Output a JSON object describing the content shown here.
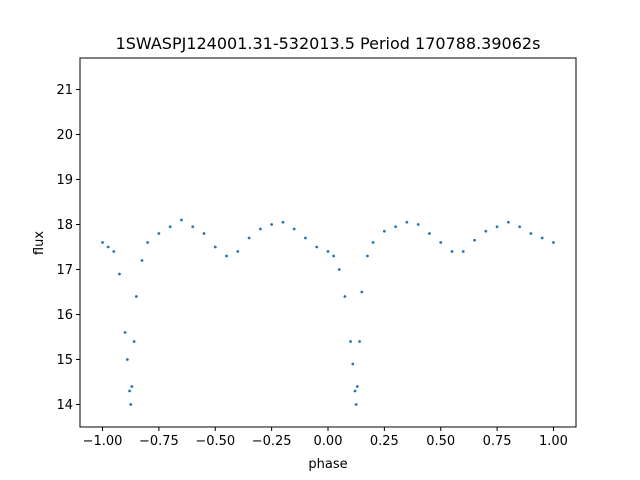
{
  "chart_data": {
    "type": "scatter",
    "title": "1SWASPJ124001.31-532013.5 Period 170788.39062s",
    "xlabel": "phase",
    "ylabel": "flux",
    "xlim": [
      -1.1,
      1.1
    ],
    "ylim": [
      13.5,
      21.7
    ],
    "xticks": [
      -1.0,
      -0.75,
      -0.5,
      -0.25,
      0.0,
      0.25,
      0.5,
      0.75,
      1.0
    ],
    "xtick_labels": [
      "−1.00",
      "−0.75",
      "−0.50",
      "−0.25",
      "0.00",
      "0.25",
      "0.50",
      "0.75",
      "1.00"
    ],
    "yticks": [
      14,
      15,
      16,
      17,
      18,
      19,
      20,
      21
    ],
    "ytick_labels": [
      "14",
      "15",
      "16",
      "17",
      "18",
      "19",
      "20",
      "21"
    ],
    "grid": false,
    "point_color": "#1f77b4",
    "series": [
      {
        "x": [
          -1.0,
          -0.975,
          -0.95,
          -0.925,
          -0.9,
          -0.89,
          -0.88,
          -0.875,
          -0.87,
          -0.86,
          -0.85,
          -0.825,
          -0.8,
          -0.75,
          -0.7,
          -0.65,
          -0.6,
          -0.55,
          -0.5,
          -0.45,
          -0.4,
          -0.35,
          -0.3,
          -0.25,
          -0.2,
          -0.15,
          -0.1,
          -0.05,
          0.0,
          0.025,
          0.05,
          0.075,
          0.1,
          0.11,
          0.12,
          0.125,
          0.13,
          0.14,
          0.15,
          0.175,
          0.2,
          0.25,
          0.3,
          0.35,
          0.4,
          0.45,
          0.5,
          0.55,
          0.6,
          0.65,
          0.7,
          0.75,
          0.8,
          0.85,
          0.9,
          0.95,
          1.0
        ],
        "y": [
          17.6,
          17.5,
          17.4,
          16.9,
          15.6,
          15.0,
          14.3,
          14.0,
          14.4,
          15.4,
          16.4,
          17.2,
          17.6,
          17.8,
          17.95,
          18.1,
          17.95,
          17.8,
          17.5,
          17.3,
          17.4,
          17.7,
          17.9,
          18.0,
          18.05,
          17.9,
          17.7,
          17.5,
          17.4,
          17.3,
          17.0,
          16.4,
          15.4,
          14.9,
          14.3,
          14.0,
          14.4,
          15.4,
          16.5,
          17.3,
          17.6,
          17.85,
          17.95,
          18.05,
          18.0,
          17.8,
          17.6,
          17.4,
          17.4,
          17.65,
          17.85,
          17.95,
          18.05,
          17.95,
          17.8,
          17.7,
          17.6
        ]
      }
    ]
  }
}
